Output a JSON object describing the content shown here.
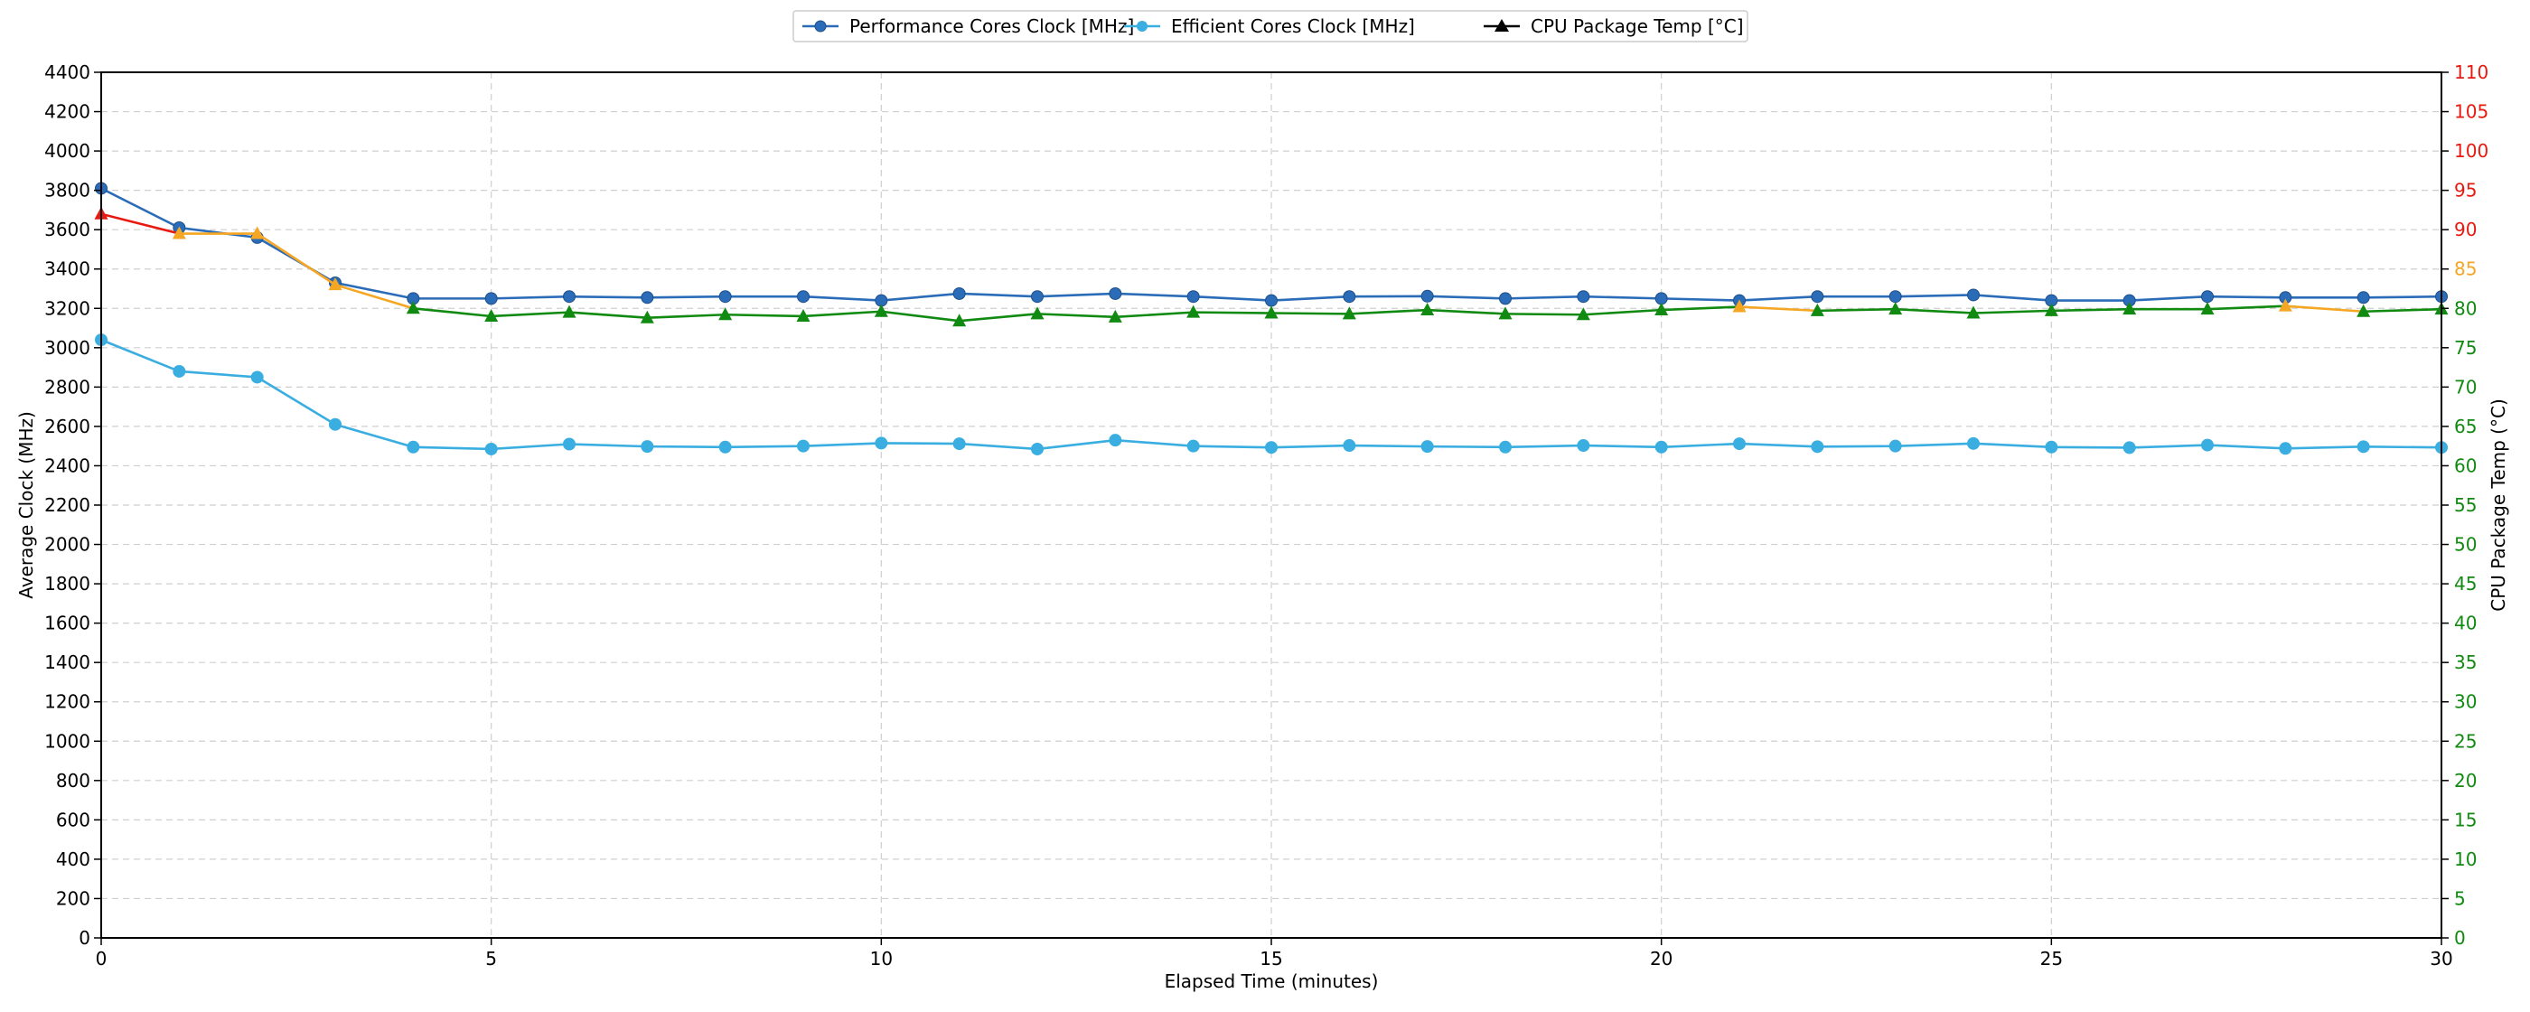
{
  "chart_data": {
    "type": "line",
    "xlabel": "Elapsed Time (minutes)",
    "ylabel": "Average Clock (MHz)",
    "y2label": "CPU Package Temp (°C)",
    "xlim": [
      0,
      30
    ],
    "ylim": [
      0,
      4400
    ],
    "y2lim": [
      0,
      110
    ],
    "x_ticks": [
      0,
      5,
      10,
      15,
      20,
      25,
      30
    ],
    "y_ticks": [
      0,
      200,
      400,
      600,
      800,
      1000,
      1200,
      1400,
      1600,
      1800,
      2000,
      2200,
      2400,
      2600,
      2800,
      3000,
      3200,
      3400,
      3600,
      3800,
      4000,
      4200,
      4400
    ],
    "y2_ticks": [
      0,
      5,
      10,
      15,
      20,
      25,
      30,
      35,
      40,
      45,
      50,
      55,
      60,
      65,
      70,
      75,
      80,
      85,
      90,
      95,
      100,
      105,
      110
    ],
    "grid": true,
    "legend_position": "top-center",
    "legend": [
      {
        "label": "Performance Cores Clock [MHz]",
        "color": "#2b6cb8",
        "marker": "circle"
      },
      {
        "label": "Efficient Cores Clock [MHz]",
        "color": "#3aaee0",
        "marker": "circle"
      },
      {
        "label": "CPU Package Temp [°C]",
        "color": "#000000",
        "marker": "triangle"
      }
    ],
    "x": [
      0,
      1,
      2,
      3,
      4,
      5,
      6,
      7,
      8,
      9,
      10,
      11,
      12,
      13,
      14,
      15,
      16,
      17,
      18,
      19,
      20,
      21,
      22,
      23,
      24,
      25,
      26,
      27,
      28,
      29,
      30
    ],
    "series": [
      {
        "name": "Performance Cores Clock [MHz]",
        "axis": "left",
        "color": "#2b6cb8",
        "marker": "circle",
        "values": [
          3810,
          3610,
          3560,
          3330,
          3250,
          3250,
          3260,
          3255,
          3260,
          3260,
          3240,
          3275,
          3260,
          3275,
          3260,
          3240,
          3260,
          3262,
          3250,
          3260,
          3250,
          3240,
          3260,
          3260,
          3268,
          3240,
          3240,
          3260,
          3255,
          3255,
          3260
        ]
      },
      {
        "name": "Efficient Cores Clock [MHz]",
        "axis": "left",
        "color": "#3aaee0",
        "marker": "circle",
        "values": [
          3040,
          2880,
          2850,
          2610,
          2495,
          2485,
          2510,
          2498,
          2495,
          2500,
          2515,
          2512,
          2485,
          2530,
          2500,
          2493,
          2503,
          2498,
          2495,
          2503,
          2495,
          2512,
          2497,
          2500,
          2513,
          2495,
          2492,
          2505,
          2488,
          2497,
          2493
        ]
      },
      {
        "name": "CPU Package Temp [°C]",
        "axis": "right",
        "marker": "triangle",
        "values": [
          92,
          89.5,
          89.5,
          83,
          80,
          79,
          79.5,
          78.8,
          79.2,
          79,
          79.6,
          78.4,
          79.3,
          78.9,
          79.5,
          79.4,
          79.3,
          79.8,
          79.3,
          79.2,
          79.8,
          80.2,
          79.7,
          79.9,
          79.4,
          79.7,
          79.9,
          79.9,
          80.3,
          79.6,
          79.9
        ],
        "color_bands": [
          {
            "min": 90,
            "color": "#e8190f"
          },
          {
            "min": 80.1,
            "color": "#f5a623"
          },
          {
            "min": 0,
            "color": "#118a11"
          }
        ]
      }
    ]
  }
}
